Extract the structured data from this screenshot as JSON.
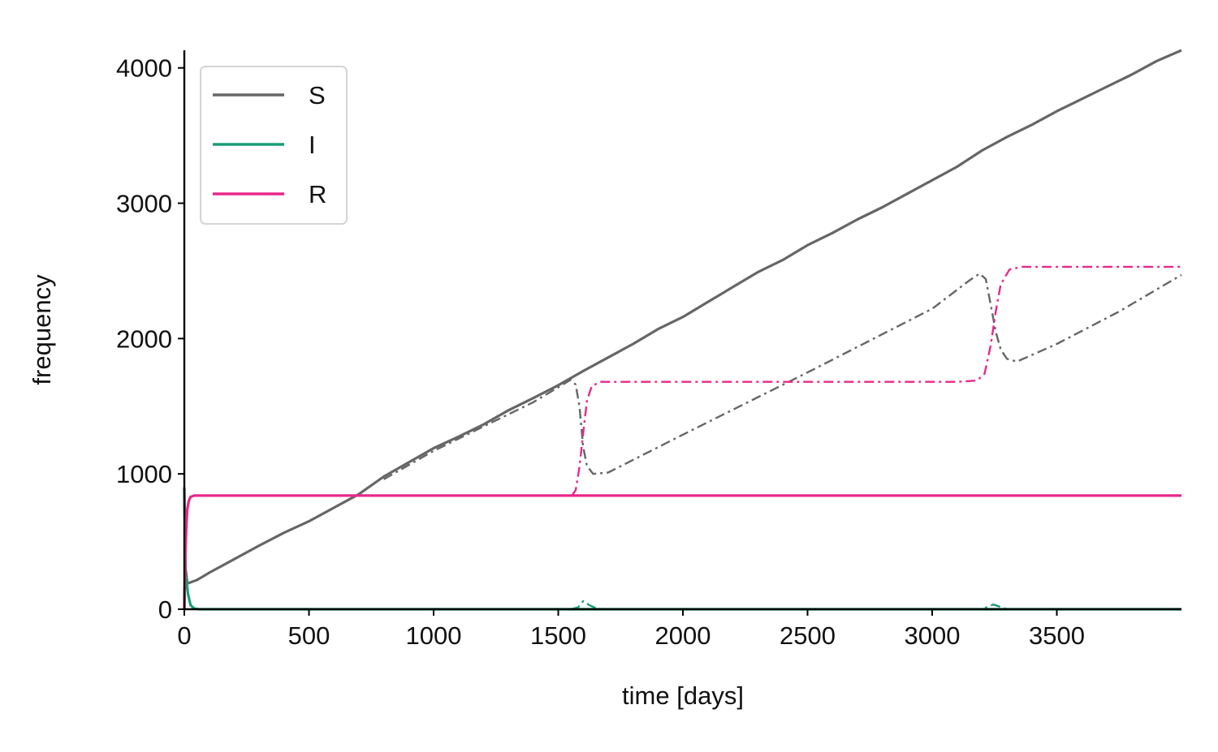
{
  "chart_data": {
    "type": "line",
    "xlabel": "time [days]",
    "ylabel": "frequency",
    "xlim": [
      0,
      4000
    ],
    "ylim": [
      0,
      4130
    ],
    "xticks": [
      0,
      500,
      1000,
      1500,
      2000,
      2500,
      3000,
      3500
    ],
    "yticks": [
      0,
      1000,
      2000,
      3000,
      4000
    ],
    "grid": false,
    "legend": {
      "placement": "top-left",
      "entries": [
        "S",
        "I",
        "R"
      ]
    },
    "series": [
      {
        "name": "S",
        "color": "#666666",
        "style": "solid",
        "points": [
          [
            0,
            900
          ],
          [
            5,
            300
          ],
          [
            12,
            190
          ],
          [
            50,
            215
          ],
          [
            100,
            270
          ],
          [
            200,
            370
          ],
          [
            300,
            470
          ],
          [
            400,
            565
          ],
          [
            500,
            650
          ],
          [
            600,
            750
          ],
          [
            700,
            850
          ],
          [
            800,
            980
          ],
          [
            900,
            1085
          ],
          [
            1000,
            1190
          ],
          [
            1100,
            1275
          ],
          [
            1200,
            1365
          ],
          [
            1300,
            1470
          ],
          [
            1400,
            1560
          ],
          [
            1500,
            1655
          ],
          [
            1600,
            1760
          ],
          [
            1700,
            1860
          ],
          [
            1800,
            1960
          ],
          [
            1900,
            2070
          ],
          [
            2000,
            2160
          ],
          [
            2100,
            2270
          ],
          [
            2200,
            2380
          ],
          [
            2300,
            2490
          ],
          [
            2400,
            2580
          ],
          [
            2500,
            2690
          ],
          [
            2600,
            2780
          ],
          [
            2700,
            2880
          ],
          [
            2800,
            2970
          ],
          [
            2900,
            3070
          ],
          [
            3000,
            3170
          ],
          [
            3100,
            3270
          ],
          [
            3200,
            3390
          ],
          [
            3300,
            3490
          ],
          [
            3400,
            3580
          ],
          [
            3500,
            3680
          ],
          [
            3600,
            3770
          ],
          [
            3700,
            3860
          ],
          [
            3800,
            3950
          ],
          [
            3900,
            4050
          ],
          [
            4000,
            4130
          ]
        ]
      },
      {
        "name": "I",
        "color": "#1b9e77",
        "style": "solid",
        "points": [
          [
            0,
            0
          ],
          [
            3,
            260
          ],
          [
            8,
            220
          ],
          [
            15,
            110
          ],
          [
            25,
            30
          ],
          [
            40,
            5
          ],
          [
            60,
            0
          ],
          [
            4000,
            0
          ]
        ]
      },
      {
        "name": "R",
        "color": "#e7298a",
        "style": "solid",
        "points": [
          [
            0,
            0
          ],
          [
            4,
            400
          ],
          [
            8,
            620
          ],
          [
            12,
            740
          ],
          [
            18,
            800
          ],
          [
            25,
            830
          ],
          [
            40,
            840
          ],
          [
            4000,
            840
          ]
        ]
      },
      {
        "name": "S",
        "color": "#666666",
        "style": "dashdot",
        "points": [
          [
            800,
            960
          ],
          [
            1000,
            1170
          ],
          [
            1200,
            1350
          ],
          [
            1400,
            1530
          ],
          [
            1550,
            1695
          ],
          [
            1570,
            1660
          ],
          [
            1585,
            1500
          ],
          [
            1600,
            1200
          ],
          [
            1615,
            1060
          ],
          [
            1640,
            1000
          ],
          [
            1700,
            1010
          ],
          [
            2000,
            1290
          ],
          [
            2500,
            1750
          ],
          [
            3000,
            2220
          ],
          [
            3150,
            2430
          ],
          [
            3190,
            2480
          ],
          [
            3215,
            2440
          ],
          [
            3235,
            2250
          ],
          [
            3255,
            2050
          ],
          [
            3275,
            1920
          ],
          [
            3300,
            1850
          ],
          [
            3340,
            1830
          ],
          [
            3500,
            1960
          ],
          [
            3750,
            2200
          ],
          [
            4000,
            2470
          ]
        ]
      },
      {
        "name": "I",
        "color": "#1b9e77",
        "style": "dashdot",
        "points": [
          [
            1550,
            0
          ],
          [
            1580,
            15
          ],
          [
            1600,
            60
          ],
          [
            1625,
            30
          ],
          [
            1660,
            0
          ],
          [
            3200,
            0
          ],
          [
            3245,
            35
          ],
          [
            3270,
            20
          ],
          [
            3300,
            0
          ],
          [
            4000,
            0
          ]
        ]
      },
      {
        "name": "R",
        "color": "#e7298a",
        "style": "dashdot",
        "points": [
          [
            1555,
            840
          ],
          [
            1570,
            880
          ],
          [
            1585,
            1050
          ],
          [
            1600,
            1300
          ],
          [
            1615,
            1540
          ],
          [
            1635,
            1650
          ],
          [
            1670,
            1680
          ],
          [
            3100,
            1680
          ],
          [
            3180,
            1690
          ],
          [
            3210,
            1740
          ],
          [
            3235,
            1950
          ],
          [
            3255,
            2200
          ],
          [
            3275,
            2400
          ],
          [
            3310,
            2510
          ],
          [
            3360,
            2530
          ],
          [
            4000,
            2530
          ]
        ]
      }
    ]
  }
}
